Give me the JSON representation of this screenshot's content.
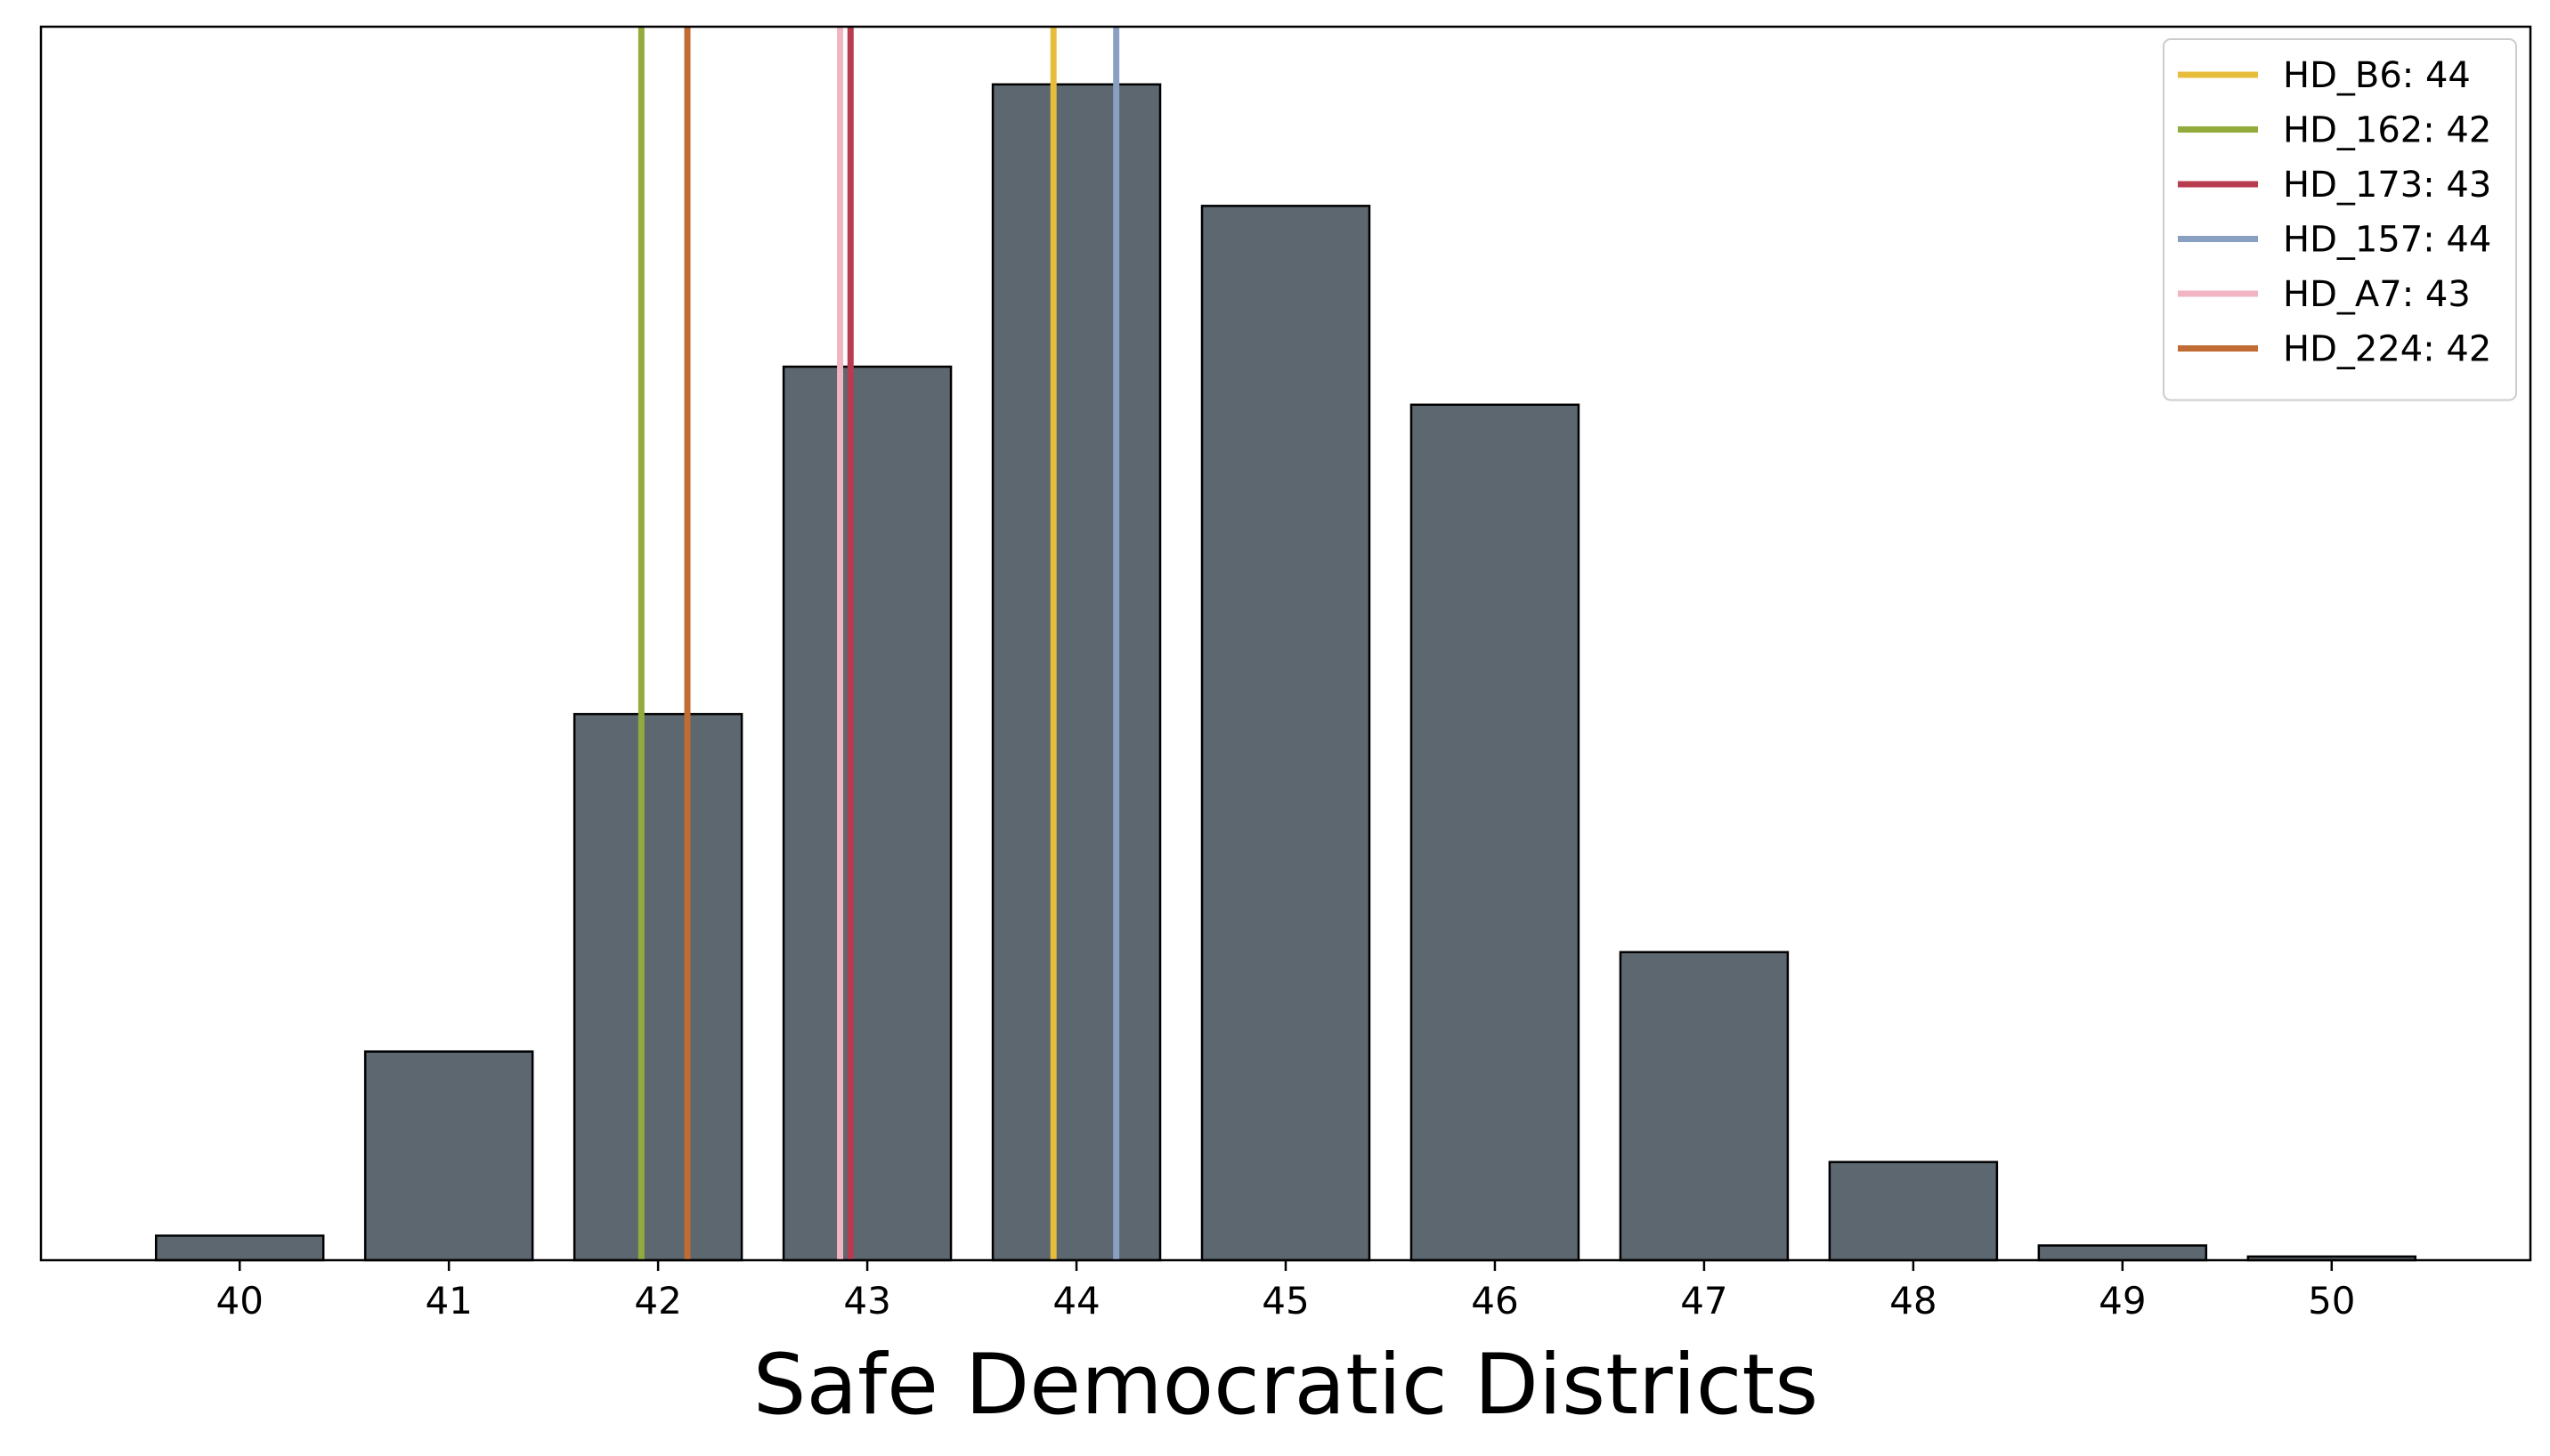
{
  "chart_data": {
    "type": "bar",
    "title": "",
    "xlabel": "Safe Democratic Districts",
    "ylabel": "",
    "categories": [
      40,
      41,
      42,
      43,
      44,
      45,
      46,
      47,
      48,
      49,
      50
    ],
    "values": [
      20,
      170,
      445,
      728,
      958,
      859,
      697,
      251,
      80,
      12,
      3
    ],
    "ylim": [
      0,
      1005
    ],
    "y_ticks_shown": false,
    "grid": false,
    "bar_color": "#5c6770",
    "bar_edge_color": "#000000",
    "reference_lines": [
      {
        "name": "HD_B6",
        "value": 44,
        "x": 43.89,
        "label": "HD_B6: 44",
        "color": "#e8bd3c"
      },
      {
        "name": "HD_162",
        "value": 42,
        "x": 41.92,
        "label": "HD_162: 42",
        "color": "#93ab3c"
      },
      {
        "name": "HD_173",
        "value": 43,
        "x": 42.92,
        "label": "HD_173: 43",
        "color": "#b83c4f"
      },
      {
        "name": "HD_157",
        "value": 44,
        "x": 44.19,
        "label": "HD_157: 44",
        "color": "#8aa0c2"
      },
      {
        "name": "HD_A7",
        "value": 43,
        "x": 42.87,
        "label": "HD_A7: 43",
        "color": "#f0b4c2"
      },
      {
        "name": "HD_224",
        "value": 42,
        "x": 42.14,
        "label": "HD_224: 42",
        "color": "#c06c34"
      }
    ],
    "legend": {
      "placement": "top-right",
      "entries": [
        "HD_B6: 44",
        "HD_162: 42",
        "HD_173: 43",
        "HD_157: 44",
        "HD_A7: 43",
        "HD_224: 42"
      ]
    }
  }
}
